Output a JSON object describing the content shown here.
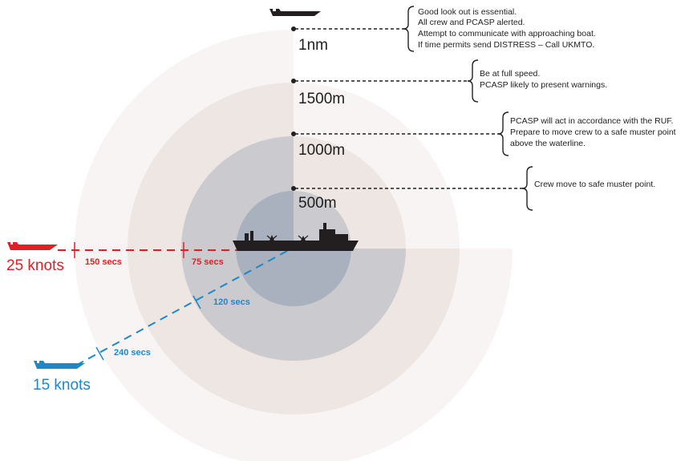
{
  "ranges": [
    {
      "label": "1nm",
      "notes": [
        "Good look out is essential.",
        "All crew and PCASP alerted.",
        "Attempt to communicate with approaching boat.",
        "If time permits send DISTRESS – Call UKMTO."
      ]
    },
    {
      "label": "1500m",
      "notes": [
        "Be at full speed.",
        "PCASP likely to present warnings."
      ]
    },
    {
      "label": "1000m",
      "notes": [
        "PCASP will act in accordance with the RUF.",
        "Prepare to move crew to a safe muster point",
        "above the waterline."
      ]
    },
    {
      "label": "500m",
      "notes": [
        "Crew move to safe muster point."
      ]
    }
  ],
  "threats": [
    {
      "speed_label": "25 knots",
      "color": "#e31e24",
      "marks": [
        "150 secs",
        "75 secs"
      ]
    },
    {
      "speed_label": "15 knots",
      "color": "#1c88c9",
      "marks": [
        "240 secs",
        "120 secs"
      ]
    }
  ],
  "colors": {
    "zone_outer": "#f7f4f3",
    "zone_1500": "#eee6e3",
    "zone_1000": "#cbcbcf",
    "zone_500": "#a8b1bd",
    "ship": "#231f20"
  }
}
